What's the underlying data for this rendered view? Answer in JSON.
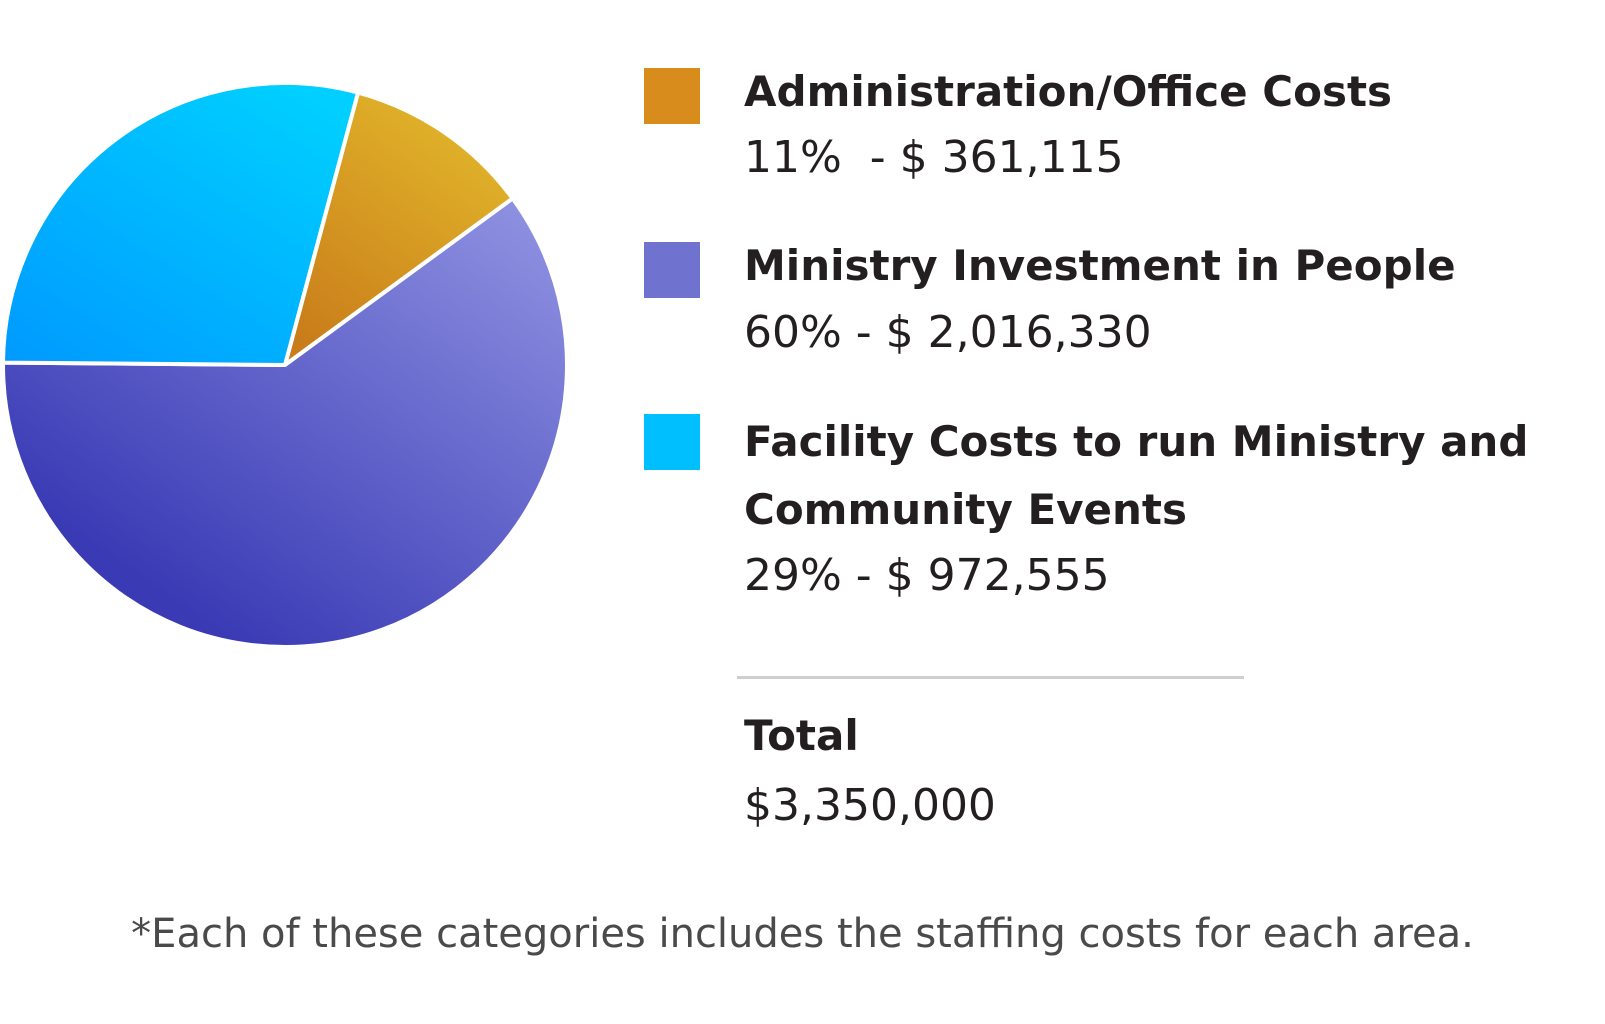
{
  "chart_data": {
    "type": "pie",
    "slices": [
      {
        "label": "Administration/Office Costs",
        "value": 361115,
        "percent": 11,
        "value_text": "11%  - $ 361,115",
        "color": "#d88c1c",
        "gradient": [
          "#c97c1a",
          "#e3b92b"
        ]
      },
      {
        "label": "Ministry Investment in People",
        "value": 2016330,
        "percent": 60,
        "value_text": "60% - $ 2,016,330",
        "color": "#6f72cf",
        "gradient": [
          "#3a3ab5",
          "#8d90e0"
        ]
      },
      {
        "label": "Facility Costs to run Ministry and Community Events",
        "label_lines": [
          "Facility Costs to run Ministry and",
          "Community Events"
        ],
        "value": 972555,
        "percent": 29,
        "value_text": "29% - $ 972,555",
        "color": "#00bfff",
        "gradient": [
          "#0099ff",
          "#00cfff"
        ]
      }
    ],
    "legend_position": "right"
  },
  "total": {
    "label": "Total",
    "value_text": "$3,350,000"
  },
  "footnote": "*Each of these categories includes the staffing costs for each area."
}
